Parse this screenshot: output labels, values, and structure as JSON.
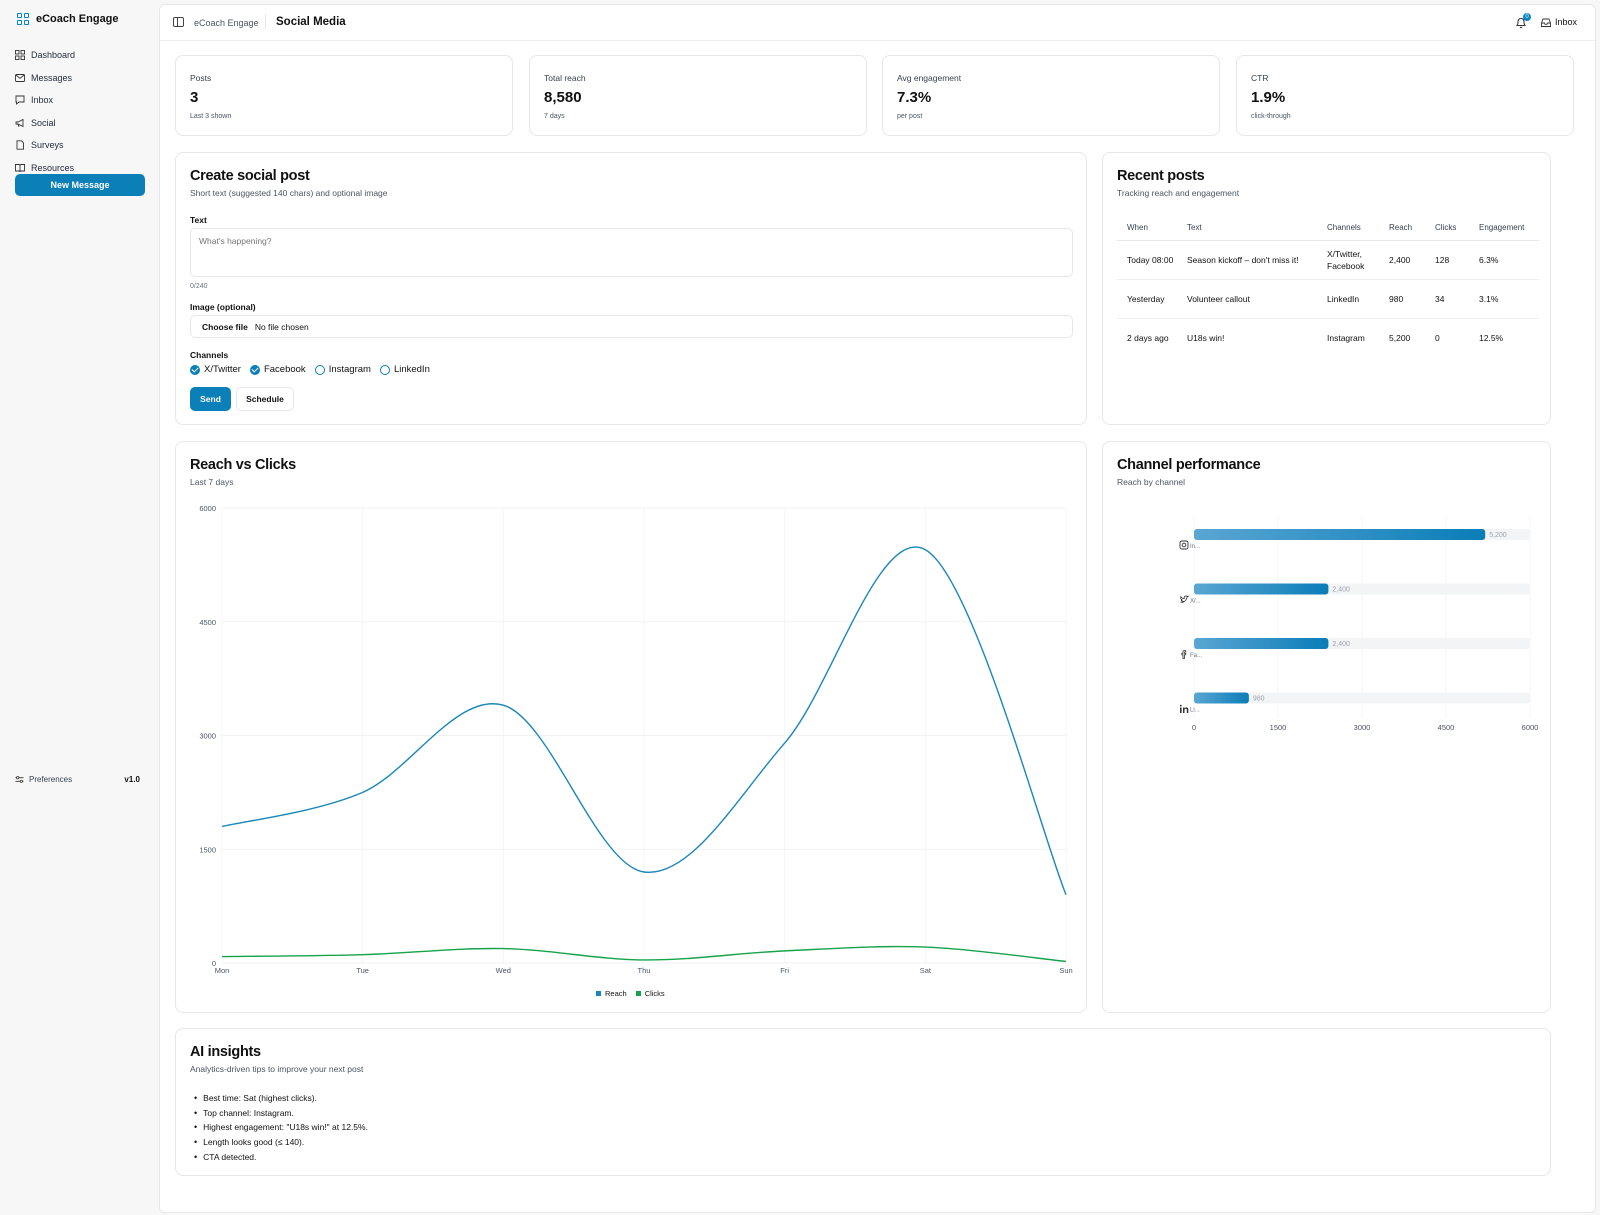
{
  "app": {
    "name": "eCoach Engage",
    "version": "v1.0"
  },
  "sidebar": {
    "items": [
      {
        "label": "Dashboard",
        "icon": "grid-icon"
      },
      {
        "label": "Messages",
        "icon": "mail-icon"
      },
      {
        "label": "Inbox",
        "icon": "chat-icon"
      },
      {
        "label": "Social",
        "icon": "megaphone-icon"
      },
      {
        "label": "Surveys",
        "icon": "document-icon"
      },
      {
        "label": "Resources",
        "icon": "book-icon"
      }
    ],
    "new_message_label": "New Message",
    "preferences_label": "Preferences"
  },
  "header": {
    "breadcrumb_app": "eCoach Engage",
    "page_title": "Social Media",
    "notifications_count": "0",
    "inbox_label": "Inbox"
  },
  "stats": [
    {
      "label": "Posts",
      "value": "3",
      "sub": "Last 3 shown"
    },
    {
      "label": "Total reach",
      "value": "8,580",
      "sub": "7 days"
    },
    {
      "label": "Avg engagement",
      "value": "7.3%",
      "sub": "per post"
    },
    {
      "label": "CTR",
      "value": "1.9%",
      "sub": "click-through"
    }
  ],
  "composer": {
    "title": "Create social post",
    "subtitle": "Short text (suggested 140 chars) and optional image",
    "text_label": "Text",
    "text_placeholder": "What's happening?",
    "counter": "0/240",
    "image_label": "Image (optional)",
    "choose_file_label": "Choose file",
    "no_file_label": "No file chosen",
    "channels_label": "Channels",
    "channels": [
      {
        "label": "X/Twitter",
        "checked": true
      },
      {
        "label": "Facebook",
        "checked": true
      },
      {
        "label": "Instagram",
        "checked": false
      },
      {
        "label": "LinkedIn",
        "checked": false
      }
    ],
    "send_label": "Send",
    "schedule_label": "Schedule"
  },
  "recent": {
    "title": "Recent posts",
    "subtitle": "Tracking reach and engagement",
    "columns": [
      "When",
      "Text",
      "Channels",
      "Reach",
      "Clicks",
      "Engagement"
    ],
    "rows": [
      {
        "when": "Today 08:00",
        "text": "Season kickoff – don't miss it!",
        "channels": "X/Twitter, Facebook",
        "reach": "2,400",
        "clicks": "128",
        "engagement": "6.3%"
      },
      {
        "when": "Yesterday",
        "text": "Volunteer callout",
        "channels": "LinkedIn",
        "reach": "980",
        "clicks": "34",
        "engagement": "3.1%"
      },
      {
        "when": "2 days ago",
        "text": "U18s win!",
        "channels": "Instagram",
        "reach": "5,200",
        "clicks": "0",
        "engagement": "12.5%"
      }
    ]
  },
  "reach_chart": {
    "title": "Reach vs Clicks",
    "subtitle": "Last 7 days"
  },
  "channel_chart": {
    "title": "Channel performance",
    "subtitle": "Reach by channel"
  },
  "chart_data": [
    {
      "type": "line",
      "title": "Reach vs Clicks",
      "subtitle": "Last 7 days",
      "x": [
        "Mon",
        "Tue",
        "Wed",
        "Thu",
        "Fri",
        "Sat",
        "Sun"
      ],
      "ylim": [
        0,
        6000
      ],
      "yticks": [
        "6000",
        "4500",
        "3000",
        "1500",
        "0"
      ],
      "legend_position": "bottom",
      "series": [
        {
          "name": "Reach",
          "color": "#1a87b8",
          "values": [
            1800,
            2250,
            3400,
            1200,
            2900,
            5450,
            900
          ]
        },
        {
          "name": "Clicks",
          "color": "#16a34a",
          "values": [
            85,
            110,
            190,
            40,
            160,
            210,
            20
          ]
        }
      ]
    },
    {
      "type": "bar",
      "orientation": "horizontal",
      "title": "Channel performance",
      "subtitle": "Reach by channel",
      "categories": [
        "In...",
        "X/...",
        "Fa...",
        "Li..."
      ],
      "category_icons": [
        "instagram-icon",
        "twitter-icon",
        "facebook-icon",
        "linkedin-icon"
      ],
      "values": [
        5200,
        2400,
        2400,
        980
      ],
      "value_labels": [
        "5,200",
        "2,400",
        "2,400",
        "980"
      ],
      "xlim": [
        0,
        6000
      ],
      "xticks": [
        "0",
        "1500",
        "3000",
        "4500",
        "6000"
      ]
    }
  ],
  "insights": {
    "title": "AI insights",
    "subtitle": "Analytics-driven tips to improve your next post",
    "items": [
      "Best time: Sat (highest clicks).",
      "Top channel: Instagram.",
      "Highest engagement: \"U18s win!\" at 12.5%.",
      "Length looks good (≤ 140).",
      "CTA detected."
    ]
  }
}
